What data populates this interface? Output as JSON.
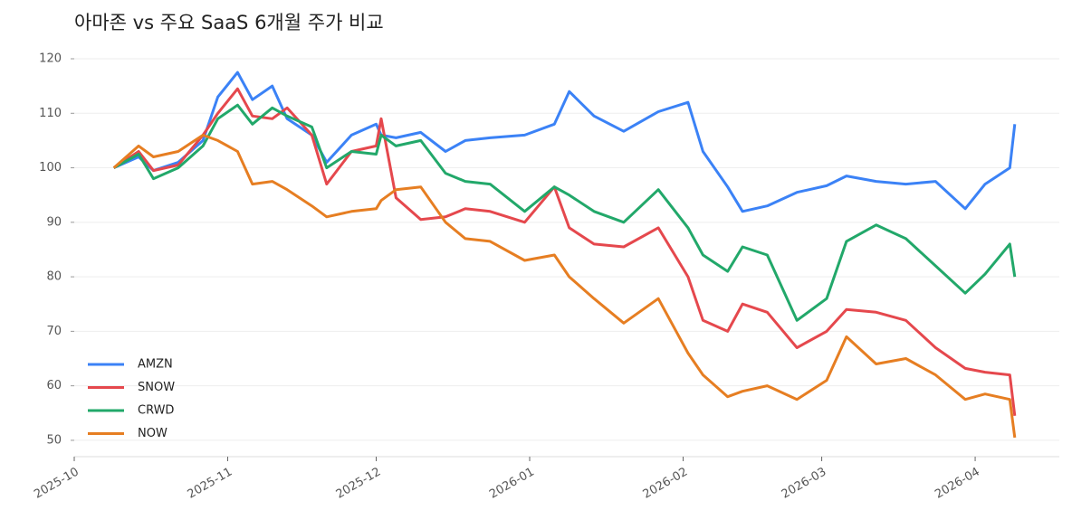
{
  "chart_data": {
    "type": "line",
    "title": "아마존 vs 주요 SaaS 6개월 주가 비교",
    "x": [
      "2025-10-09",
      "2025-10-14",
      "2025-10-17",
      "2025-10-22",
      "2025-10-27",
      "2025-10-30",
      "2025-11-03",
      "2025-11-06",
      "2025-11-10",
      "2025-11-13",
      "2025-11-18",
      "2025-11-21",
      "2025-11-26",
      "2025-12-01",
      "2025-12-02",
      "2025-12-05",
      "2025-12-10",
      "2025-12-15",
      "2025-12-19",
      "2025-12-24",
      "2025-12-31",
      "2026-01-06",
      "2026-01-09",
      "2026-01-14",
      "2026-01-20",
      "2026-01-27",
      "2026-02-02",
      "2026-02-05",
      "2026-02-10",
      "2026-02-13",
      "2026-02-18",
      "2026-02-24",
      "2026-03-02",
      "2026-03-06",
      "2026-03-12",
      "2026-03-18",
      "2026-03-24",
      "2026-03-30",
      "2026-04-03",
      "2026-04-08",
      "2026-04-09"
    ],
    "series": [
      {
        "name": "AMZN",
        "color": "#3b82f6",
        "values": [
          100,
          102,
          99.5,
          101,
          105,
          113,
          117.5,
          112.5,
          115,
          109,
          106,
          101,
          106,
          108,
          106,
          105.5,
          106.5,
          103,
          105,
          105.5,
          106,
          108,
          114,
          109.5,
          106.7,
          110.3,
          112,
          103,
          96.5,
          92,
          93,
          95.5,
          96.7,
          98.5,
          97.5,
          97,
          97.5,
          92.5,
          97,
          100,
          108
        ]
      },
      {
        "name": "SNOW",
        "color": "#e5484d",
        "values": [
          100,
          103,
          99.5,
          100.5,
          106,
          110,
          114.5,
          109.5,
          109,
          111,
          106,
          97,
          103,
          104,
          109,
          94.5,
          90.5,
          91,
          92.5,
          92,
          90,
          96.5,
          89,
          86,
          85.5,
          89,
          80,
          72,
          70,
          75,
          73.5,
          67,
          70,
          74,
          73.5,
          72,
          67,
          63.2,
          62.5,
          62,
          54.5
        ]
      },
      {
        "name": "CRWD",
        "color": "#22a86a",
        "values": [
          100,
          102.5,
          98,
          100,
          104,
          109,
          111.5,
          108,
          111,
          109.5,
          107.5,
          100,
          103,
          102.5,
          106,
          104,
          105,
          99,
          97.5,
          97,
          92,
          96.5,
          95,
          92,
          90,
          96,
          89,
          84,
          81,
          85.5,
          84,
          72,
          76,
          86.5,
          89.5,
          87,
          82,
          77,
          80.5,
          86,
          80
        ]
      },
      {
        "name": "NOW",
        "color": "#e67e22",
        "values": [
          100,
          104,
          102,
          103,
          106,
          105,
          103,
          97,
          97.5,
          96,
          93,
          91,
          92,
          92.5,
          94,
          96,
          96.5,
          90,
          87,
          86.5,
          83,
          84,
          80,
          76,
          71.5,
          76,
          66,
          62,
          58,
          59,
          60,
          57.5,
          61,
          69,
          64,
          65,
          62,
          57.5,
          58.5,
          57.5,
          50.5
        ]
      }
    ],
    "xlim": [
      "2025-10-01",
      "2026-04-18"
    ],
    "xticks": [
      {
        "value": "2025-10-01",
        "label": "2025-10"
      },
      {
        "value": "2025-11-01",
        "label": "2025-11"
      },
      {
        "value": "2025-12-01",
        "label": "2025-12"
      },
      {
        "value": "2026-01-01",
        "label": "2026-01"
      },
      {
        "value": "2026-02-01",
        "label": "2026-02"
      },
      {
        "value": "2026-03-01",
        "label": "2026-03"
      },
      {
        "value": "2026-04-01",
        "label": "2026-04"
      }
    ],
    "ylim": [
      47,
      120.5
    ],
    "yticks": [
      50,
      60,
      70,
      80,
      90,
      100,
      110,
      120
    ],
    "grid": true,
    "legend": "lower left"
  }
}
